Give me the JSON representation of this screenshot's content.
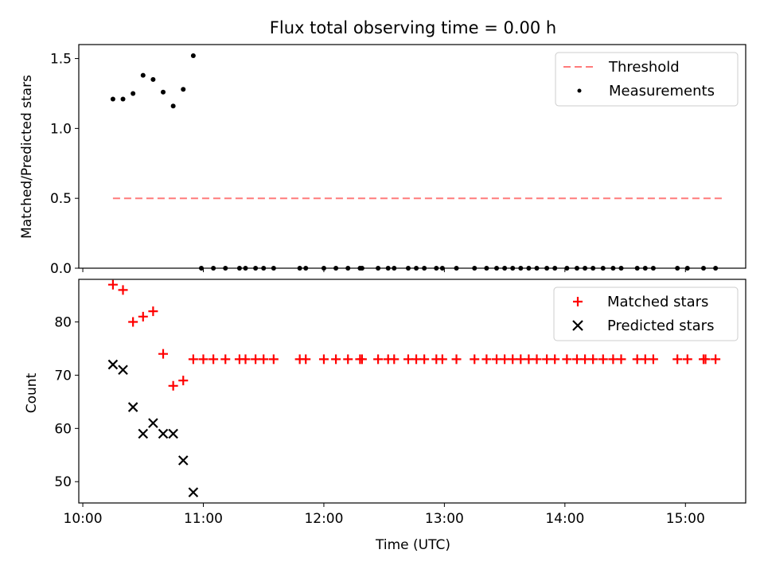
{
  "chart_data": [
    {
      "type": "scatter",
      "title": "Flux total observing time = 0.00 h",
      "xlabel": "",
      "ylabel": "Matched/Predicted stars",
      "xlim": [
        "09:58",
        "15:30"
      ],
      "ylim": [
        0,
        1.6
      ],
      "yticks": [
        "0.0",
        "0.5",
        "1.0",
        "1.5"
      ],
      "legend": {
        "placement": "top-right"
      },
      "threshold": {
        "name": "Threshold",
        "value": 0.5,
        "x_start": "10:15",
        "x_end": "15:20",
        "color": "#ff7b7b",
        "style": "dashed"
      },
      "series": [
        {
          "name": "Measurements",
          "color": "#000000",
          "marker": "dot",
          "points": [
            [
              "10:15",
              1.21
            ],
            [
              "10:20",
              1.21
            ],
            [
              "10:25",
              1.25
            ],
            [
              "10:30",
              1.38
            ],
            [
              "10:35",
              1.35
            ],
            [
              "10:40",
              1.26
            ],
            [
              "10:45",
              1.16
            ],
            [
              "10:50",
              1.28
            ],
            [
              "10:55",
              1.52
            ],
            [
              "10:59",
              0
            ],
            [
              "11:05",
              0
            ],
            [
              "11:11",
              0
            ],
            [
              "11:18",
              0
            ],
            [
              "11:21",
              0
            ],
            [
              "11:26",
              0
            ],
            [
              "11:30",
              0
            ],
            [
              "11:35",
              0
            ],
            [
              "11:48",
              0
            ],
            [
              "11:51",
              0
            ],
            [
              "12:00",
              0
            ],
            [
              "12:06",
              0
            ],
            [
              "12:12",
              0
            ],
            [
              "12:18",
              0
            ],
            [
              "12:19",
              0
            ],
            [
              "12:27",
              0
            ],
            [
              "12:32",
              0
            ],
            [
              "12:35",
              0
            ],
            [
              "12:42",
              0
            ],
            [
              "12:46",
              0
            ],
            [
              "12:50",
              0
            ],
            [
              "12:56",
              0
            ],
            [
              "12:59",
              0
            ],
            [
              "13:06",
              0
            ],
            [
              "13:15",
              0
            ],
            [
              "13:21",
              0
            ],
            [
              "13:26",
              0
            ],
            [
              "13:30",
              0
            ],
            [
              "13:34",
              0
            ],
            [
              "13:38",
              0
            ],
            [
              "13:42",
              0
            ],
            [
              "13:46",
              0
            ],
            [
              "13:51",
              0
            ],
            [
              "13:55",
              0
            ],
            [
              "14:01",
              0
            ],
            [
              "14:06",
              0
            ],
            [
              "14:10",
              0
            ],
            [
              "14:14",
              0
            ],
            [
              "14:19",
              0
            ],
            [
              "14:24",
              0
            ],
            [
              "14:28",
              0
            ],
            [
              "14:36",
              0
            ],
            [
              "14:40",
              0
            ],
            [
              "14:44",
              0
            ],
            [
              "14:56",
              0
            ],
            [
              "15:01",
              0
            ],
            [
              "15:09",
              0
            ],
            [
              "15:15",
              0
            ]
          ]
        }
      ]
    },
    {
      "type": "scatter",
      "title": "",
      "xlabel": "Time (UTC)",
      "ylabel": "Count",
      "xlim": [
        "09:58",
        "15:30"
      ],
      "ylim": [
        46,
        88
      ],
      "yticks": [
        "50",
        "60",
        "70",
        "80"
      ],
      "xticks": [
        "10:00",
        "11:00",
        "12:00",
        "13:00",
        "14:00",
        "15:00"
      ],
      "legend": {
        "placement": "top-right"
      },
      "series": [
        {
          "name": "Matched stars",
          "color": "#ff0000",
          "marker": "plus",
          "points": [
            [
              "10:15",
              87
            ],
            [
              "10:20",
              86
            ],
            [
              "10:25",
              80
            ],
            [
              "10:30",
              81
            ],
            [
              "10:35",
              82
            ],
            [
              "10:40",
              74
            ],
            [
              "10:45",
              68
            ],
            [
              "10:50",
              69
            ],
            [
              "10:55",
              73
            ],
            [
              "11:00",
              73
            ],
            [
              "11:05",
              73
            ],
            [
              "11:11",
              73
            ],
            [
              "11:18",
              73
            ],
            [
              "11:21",
              73
            ],
            [
              "11:26",
              73
            ],
            [
              "11:30",
              73
            ],
            [
              "11:35",
              73
            ],
            [
              "11:48",
              73
            ],
            [
              "11:51",
              73
            ],
            [
              "12:00",
              73
            ],
            [
              "12:06",
              73
            ],
            [
              "12:12",
              73
            ],
            [
              "12:18",
              73
            ],
            [
              "12:19",
              73
            ],
            [
              "12:27",
              73
            ],
            [
              "12:32",
              73
            ],
            [
              "12:35",
              73
            ],
            [
              "12:42",
              73
            ],
            [
              "12:46",
              73
            ],
            [
              "12:50",
              73
            ],
            [
              "12:56",
              73
            ],
            [
              "12:59",
              73
            ],
            [
              "13:06",
              73
            ],
            [
              "13:15",
              73
            ],
            [
              "13:21",
              73
            ],
            [
              "13:26",
              73
            ],
            [
              "13:30",
              73
            ],
            [
              "13:34",
              73
            ],
            [
              "13:38",
              73
            ],
            [
              "13:42",
              73
            ],
            [
              "13:46",
              73
            ],
            [
              "13:51",
              73
            ],
            [
              "13:55",
              73
            ],
            [
              "14:01",
              73
            ],
            [
              "14:06",
              73
            ],
            [
              "14:10",
              73
            ],
            [
              "14:14",
              73
            ],
            [
              "14:19",
              73
            ],
            [
              "14:24",
              73
            ],
            [
              "14:28",
              73
            ],
            [
              "14:36",
              73
            ],
            [
              "14:40",
              73
            ],
            [
              "14:44",
              73
            ],
            [
              "14:56",
              73
            ],
            [
              "15:01",
              73
            ],
            [
              "15:09",
              73
            ],
            [
              "15:10",
              73
            ],
            [
              "15:15",
              73
            ]
          ]
        },
        {
          "name": "Predicted stars",
          "color": "#000000",
          "marker": "x",
          "points": [
            [
              "10:15",
              72
            ],
            [
              "10:20",
              71
            ],
            [
              "10:25",
              64
            ],
            [
              "10:30",
              59
            ],
            [
              "10:35",
              61
            ],
            [
              "10:40",
              59
            ],
            [
              "10:45",
              59
            ],
            [
              "10:50",
              54
            ],
            [
              "10:55",
              48
            ]
          ]
        }
      ]
    }
  ]
}
